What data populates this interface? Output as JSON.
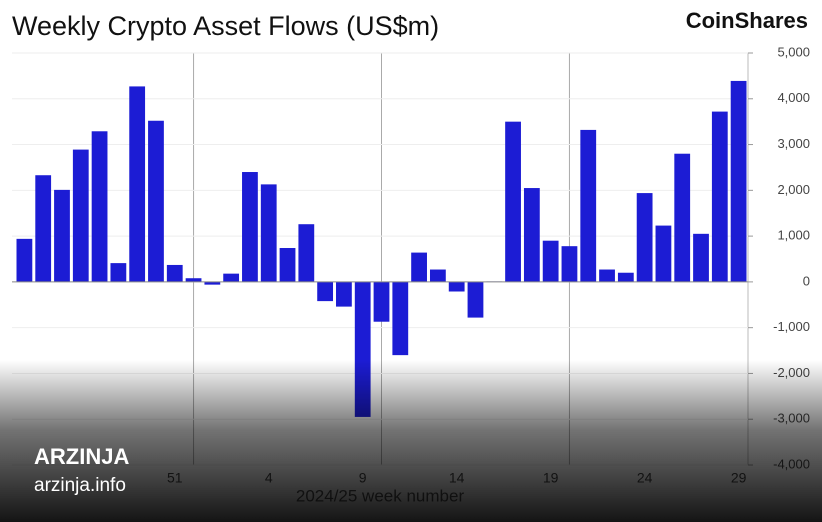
{
  "chart_data": {
    "type": "bar",
    "title": "Weekly Crypto Asset Flows (US$m)",
    "logo": "CoinShares",
    "x_label": "2024/25 week number",
    "categories": [
      null,
      null,
      null,
      null,
      null,
      null,
      null,
      null,
      "51",
      null,
      null,
      null,
      null,
      "4",
      null,
      null,
      null,
      null,
      "9",
      null,
      null,
      null,
      null,
      "14",
      null,
      null,
      null,
      null,
      "19",
      null,
      null,
      null,
      null,
      "24",
      null,
      null,
      null,
      null,
      "29"
    ],
    "values": [
      940,
      2330,
      2010,
      2890,
      3290,
      410,
      4270,
      3520,
      370,
      80,
      -60,
      180,
      2400,
      2130,
      740,
      1260,
      -420,
      -540,
      -2950,
      -870,
      -1600,
      640,
      270,
      -210,
      -780,
      10,
      3500,
      2050,
      900,
      780,
      3320,
      270,
      200,
      1940,
      1230,
      2800,
      1050,
      3720,
      4390
    ],
    "color": "#1c1cd4",
    "ylim": [
      -4000,
      5000
    ],
    "yticks": [
      {
        "value": -4000,
        "label": "-4,000"
      },
      {
        "value": -3000,
        "label": "-3,000"
      },
      {
        "value": -2000,
        "label": "-2,000"
      },
      {
        "value": -1000,
        "label": "-1,000"
      },
      0,
      {
        "value": 1000,
        "label": "1,000"
      },
      {
        "value": 2000,
        "label": "2,000"
      },
      {
        "value": 3000,
        "label": "3,000"
      },
      {
        "value": 4000,
        "label": "4,000"
      },
      {
        "value": 5000,
        "label": "5,000"
      }
    ],
    "grid": true
  },
  "watermark": {
    "brand": "ARZINJA",
    "site": "arzinja.info"
  }
}
